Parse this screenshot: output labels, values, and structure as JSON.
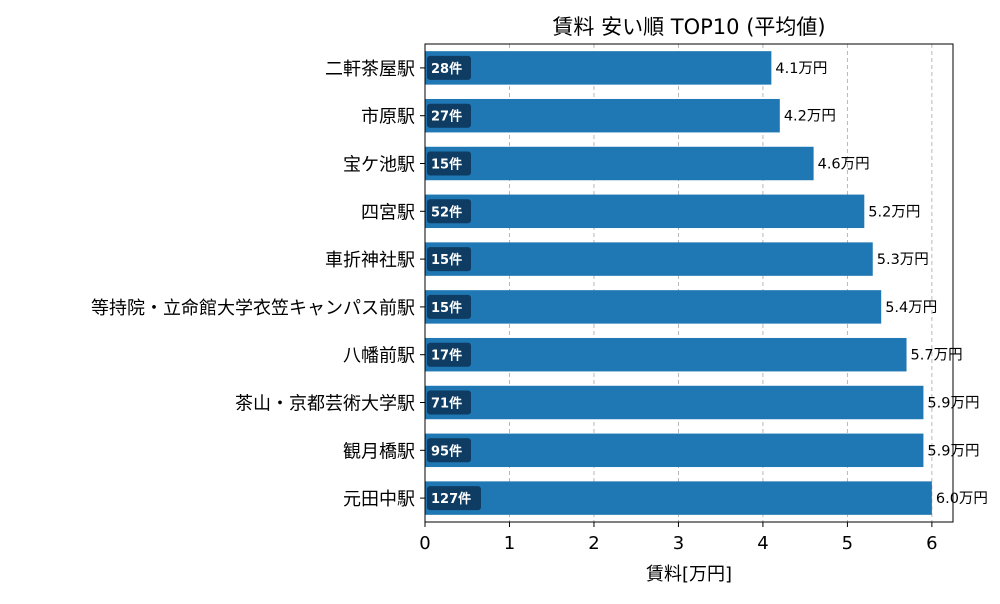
{
  "chart_data": {
    "type": "bar",
    "orientation": "horizontal",
    "title": "賃料 安い順 TOP10 (平均値)",
    "xlabel": "賃料[万円]",
    "ylabel": "",
    "xlim": [
      0,
      6.25
    ],
    "xticks": [
      "0",
      "1",
      "2",
      "3",
      "4",
      "5",
      "6"
    ],
    "grid": "vertical dashed",
    "bar_color": "#1f77b4",
    "categories": [
      "二軒茶屋駅",
      "市原駅",
      "宝ケ池駅",
      "四宮駅",
      "車折神社駅",
      "等持院・立命館大学衣笠キャンパス前駅",
      "八幡前駅",
      "茶山・京都芸術大学駅",
      "観月橋駅",
      "元田中駅"
    ],
    "values": [
      4.1,
      4.2,
      4.6,
      5.2,
      5.3,
      5.4,
      5.7,
      5.9,
      5.9,
      6.0
    ],
    "value_labels": [
      "4.1万円",
      "4.2万円",
      "4.6万円",
      "5.2万円",
      "5.3万円",
      "5.4万円",
      "5.7万円",
      "5.9万円",
      "5.9万円",
      "6.0万円"
    ],
    "counts": [
      "28件",
      "27件",
      "15件",
      "52件",
      "15件",
      "15件",
      "17件",
      "71件",
      "95件",
      "127件"
    ]
  }
}
